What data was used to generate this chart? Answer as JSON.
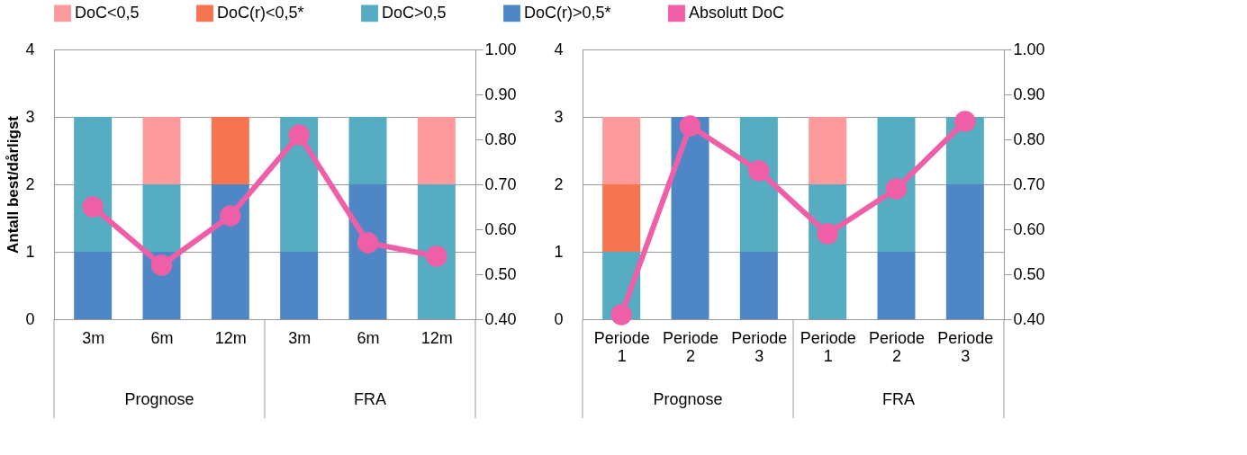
{
  "chart_data": [
    {
      "type": "bar",
      "stacked": true,
      "ylabel": "Antall best/dårligst",
      "categories": [
        "3m",
        "6m",
        "12m",
        "3m",
        "6m",
        "12m"
      ],
      "annotations": [
        "Prognose",
        "FRA"
      ],
      "series": [
        {
          "name": "DoC(r)>0,5*",
          "color": "#4f87c6",
          "values": [
            1,
            1,
            2,
            1,
            2,
            0
          ]
        },
        {
          "name": "DoC>0,5",
          "color": "#56acc0",
          "values": [
            2,
            1,
            0,
            2,
            1,
            2
          ]
        },
        {
          "name": "DoC(r)<0,5*",
          "color": "#f6744f",
          "values": [
            0,
            0,
            1,
            0,
            0,
            0
          ]
        },
        {
          "name": "DoC<0,5",
          "color": "#fc9a9c",
          "values": [
            0,
            1,
            0,
            0,
            0,
            1
          ]
        },
        {
          "name": "Absolutt DoC",
          "type": "line",
          "axis": "y2",
          "marker": "circle",
          "color": "#ef5fa7",
          "values": [
            0.65,
            0.52,
            0.63,
            0.81,
            0.57,
            0.54
          ]
        }
      ],
      "ylim": [
        0,
        4
      ],
      "yticks": [
        0,
        1,
        2,
        3,
        4
      ],
      "y2lim": [
        0.4,
        1.0
      ],
      "y2ticks": [
        {
          "value": 0.4,
          "label": "0.40"
        },
        {
          "value": 0.5,
          "label": "0.50"
        },
        {
          "value": 0.6,
          "label": "0.60"
        },
        {
          "value": 0.7,
          "label": "0.70"
        },
        {
          "value": 0.8,
          "label": "0.80"
        },
        {
          "value": 0.9,
          "label": "0.90"
        },
        {
          "value": 1.0,
          "label": "1.00"
        }
      ],
      "grid": "y",
      "legend": "top"
    },
    {
      "type": "bar",
      "stacked": true,
      "categories": [
        "Periode 1",
        "Periode 2",
        "Periode 3",
        "Periode 1",
        "Periode 2",
        "Periode 3"
      ],
      "annotations": [
        "Prognose",
        "FRA"
      ],
      "series": [
        {
          "name": "DoC(r)>0,5*",
          "color": "#4f87c6",
          "values": [
            0,
            3,
            1,
            0,
            1,
            2
          ]
        },
        {
          "name": "DoC>0,5",
          "color": "#56acc0",
          "values": [
            1,
            0,
            2,
            2,
            2,
            1
          ]
        },
        {
          "name": "DoC(r)<0,5*",
          "color": "#f6744f",
          "values": [
            1,
            0,
            0,
            0,
            0,
            0
          ]
        },
        {
          "name": "DoC<0,5",
          "color": "#fc9a9c",
          "values": [
            1,
            0,
            0,
            1,
            0,
            0
          ]
        },
        {
          "name": "Absolutt DoC",
          "type": "line",
          "axis": "y2",
          "marker": "circle",
          "color": "#ef5fa7",
          "values": [
            0.41,
            0.83,
            0.73,
            0.59,
            0.69,
            0.84
          ]
        }
      ],
      "ylim": [
        0,
        4
      ],
      "yticks": [
        0,
        1,
        2,
        3,
        4
      ],
      "y2lim": [
        0.4,
        1.0
      ],
      "y2ticks": [
        {
          "value": 0.4,
          "label": "0.40"
        },
        {
          "value": 0.5,
          "label": "0.50"
        },
        {
          "value": 0.6,
          "label": "0.60"
        },
        {
          "value": 0.7,
          "label": "0.70"
        },
        {
          "value": 0.8,
          "label": "0.80"
        },
        {
          "value": 0.9,
          "label": "0.90"
        },
        {
          "value": 1.0,
          "label": "1.00"
        }
      ],
      "grid": "y",
      "legend": "top"
    }
  ]
}
